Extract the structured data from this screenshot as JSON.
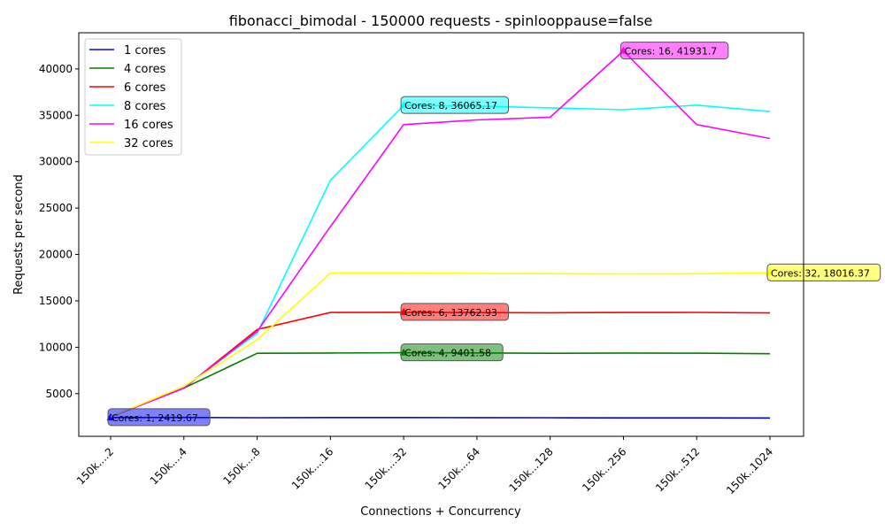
{
  "chart_data": {
    "type": "line",
    "title": "fibonacci_bimodal - 150000 requests - spinlooppause=false",
    "xlabel": "Connections + Concurrency",
    "ylabel": "Requests per second",
    "categories": [
      "150k....2",
      "150k....4",
      "150k....8",
      "150k....16",
      "150k....32",
      "150k....64",
      "150k...128",
      "150k...256",
      "150k...512",
      "150k..1024"
    ],
    "ylim": [
      400,
      43900
    ],
    "yticks": [
      5000,
      10000,
      15000,
      20000,
      25000,
      30000,
      35000,
      40000
    ],
    "ytick_labels": [
      "5000",
      "10000",
      "15000",
      "20000",
      "25000",
      "30000",
      "35000",
      "40000"
    ],
    "legend_position": "upper-left",
    "grid": false,
    "series": [
      {
        "name": "1 cores",
        "color": "#0000ff",
        "values": [
          2420,
          2430,
          2400,
          2420,
          2420,
          2410,
          2400,
          2380,
          2380,
          2370
        ],
        "peak_index": 0,
        "annotation": "Cores: 1, 2419.67"
      },
      {
        "name": "4 cores",
        "color": "#008000",
        "values": [
          2500,
          5600,
          9350,
          9380,
          9402,
          9390,
          9350,
          9380,
          9360,
          9300
        ],
        "peak_index": 4,
        "annotation": "Cores: 4, 9401.58"
      },
      {
        "name": "6 cores",
        "color": "#ff0000",
        "values": [
          2500,
          5600,
          11900,
          13750,
          13763,
          13740,
          13720,
          13750,
          13760,
          13700
        ],
        "peak_index": 4,
        "annotation": "Cores: 6, 13762.93"
      },
      {
        "name": "8 cores",
        "color": "#00ffff",
        "values": [
          2500,
          5700,
          11500,
          28000,
          36065,
          36000,
          35800,
          35600,
          36100,
          35400
        ],
        "peak_index": 4,
        "annotation": "Cores: 8, 36065.17"
      },
      {
        "name": "16 cores",
        "color": "#ff00ff",
        "values": [
          2500,
          5600,
          11700,
          23000,
          34000,
          34500,
          34800,
          41932,
          34000,
          32500
        ],
        "peak_index": 7,
        "annotation": "Cores: 16, 41931.7"
      },
      {
        "name": "32 cores",
        "color": "#ffff00",
        "values": [
          2500,
          5800,
          10800,
          18000,
          18000,
          17950,
          17930,
          17900,
          17920,
          18016
        ],
        "peak_index": 9,
        "annotation": "Cores: 32, 18016.37"
      }
    ]
  }
}
